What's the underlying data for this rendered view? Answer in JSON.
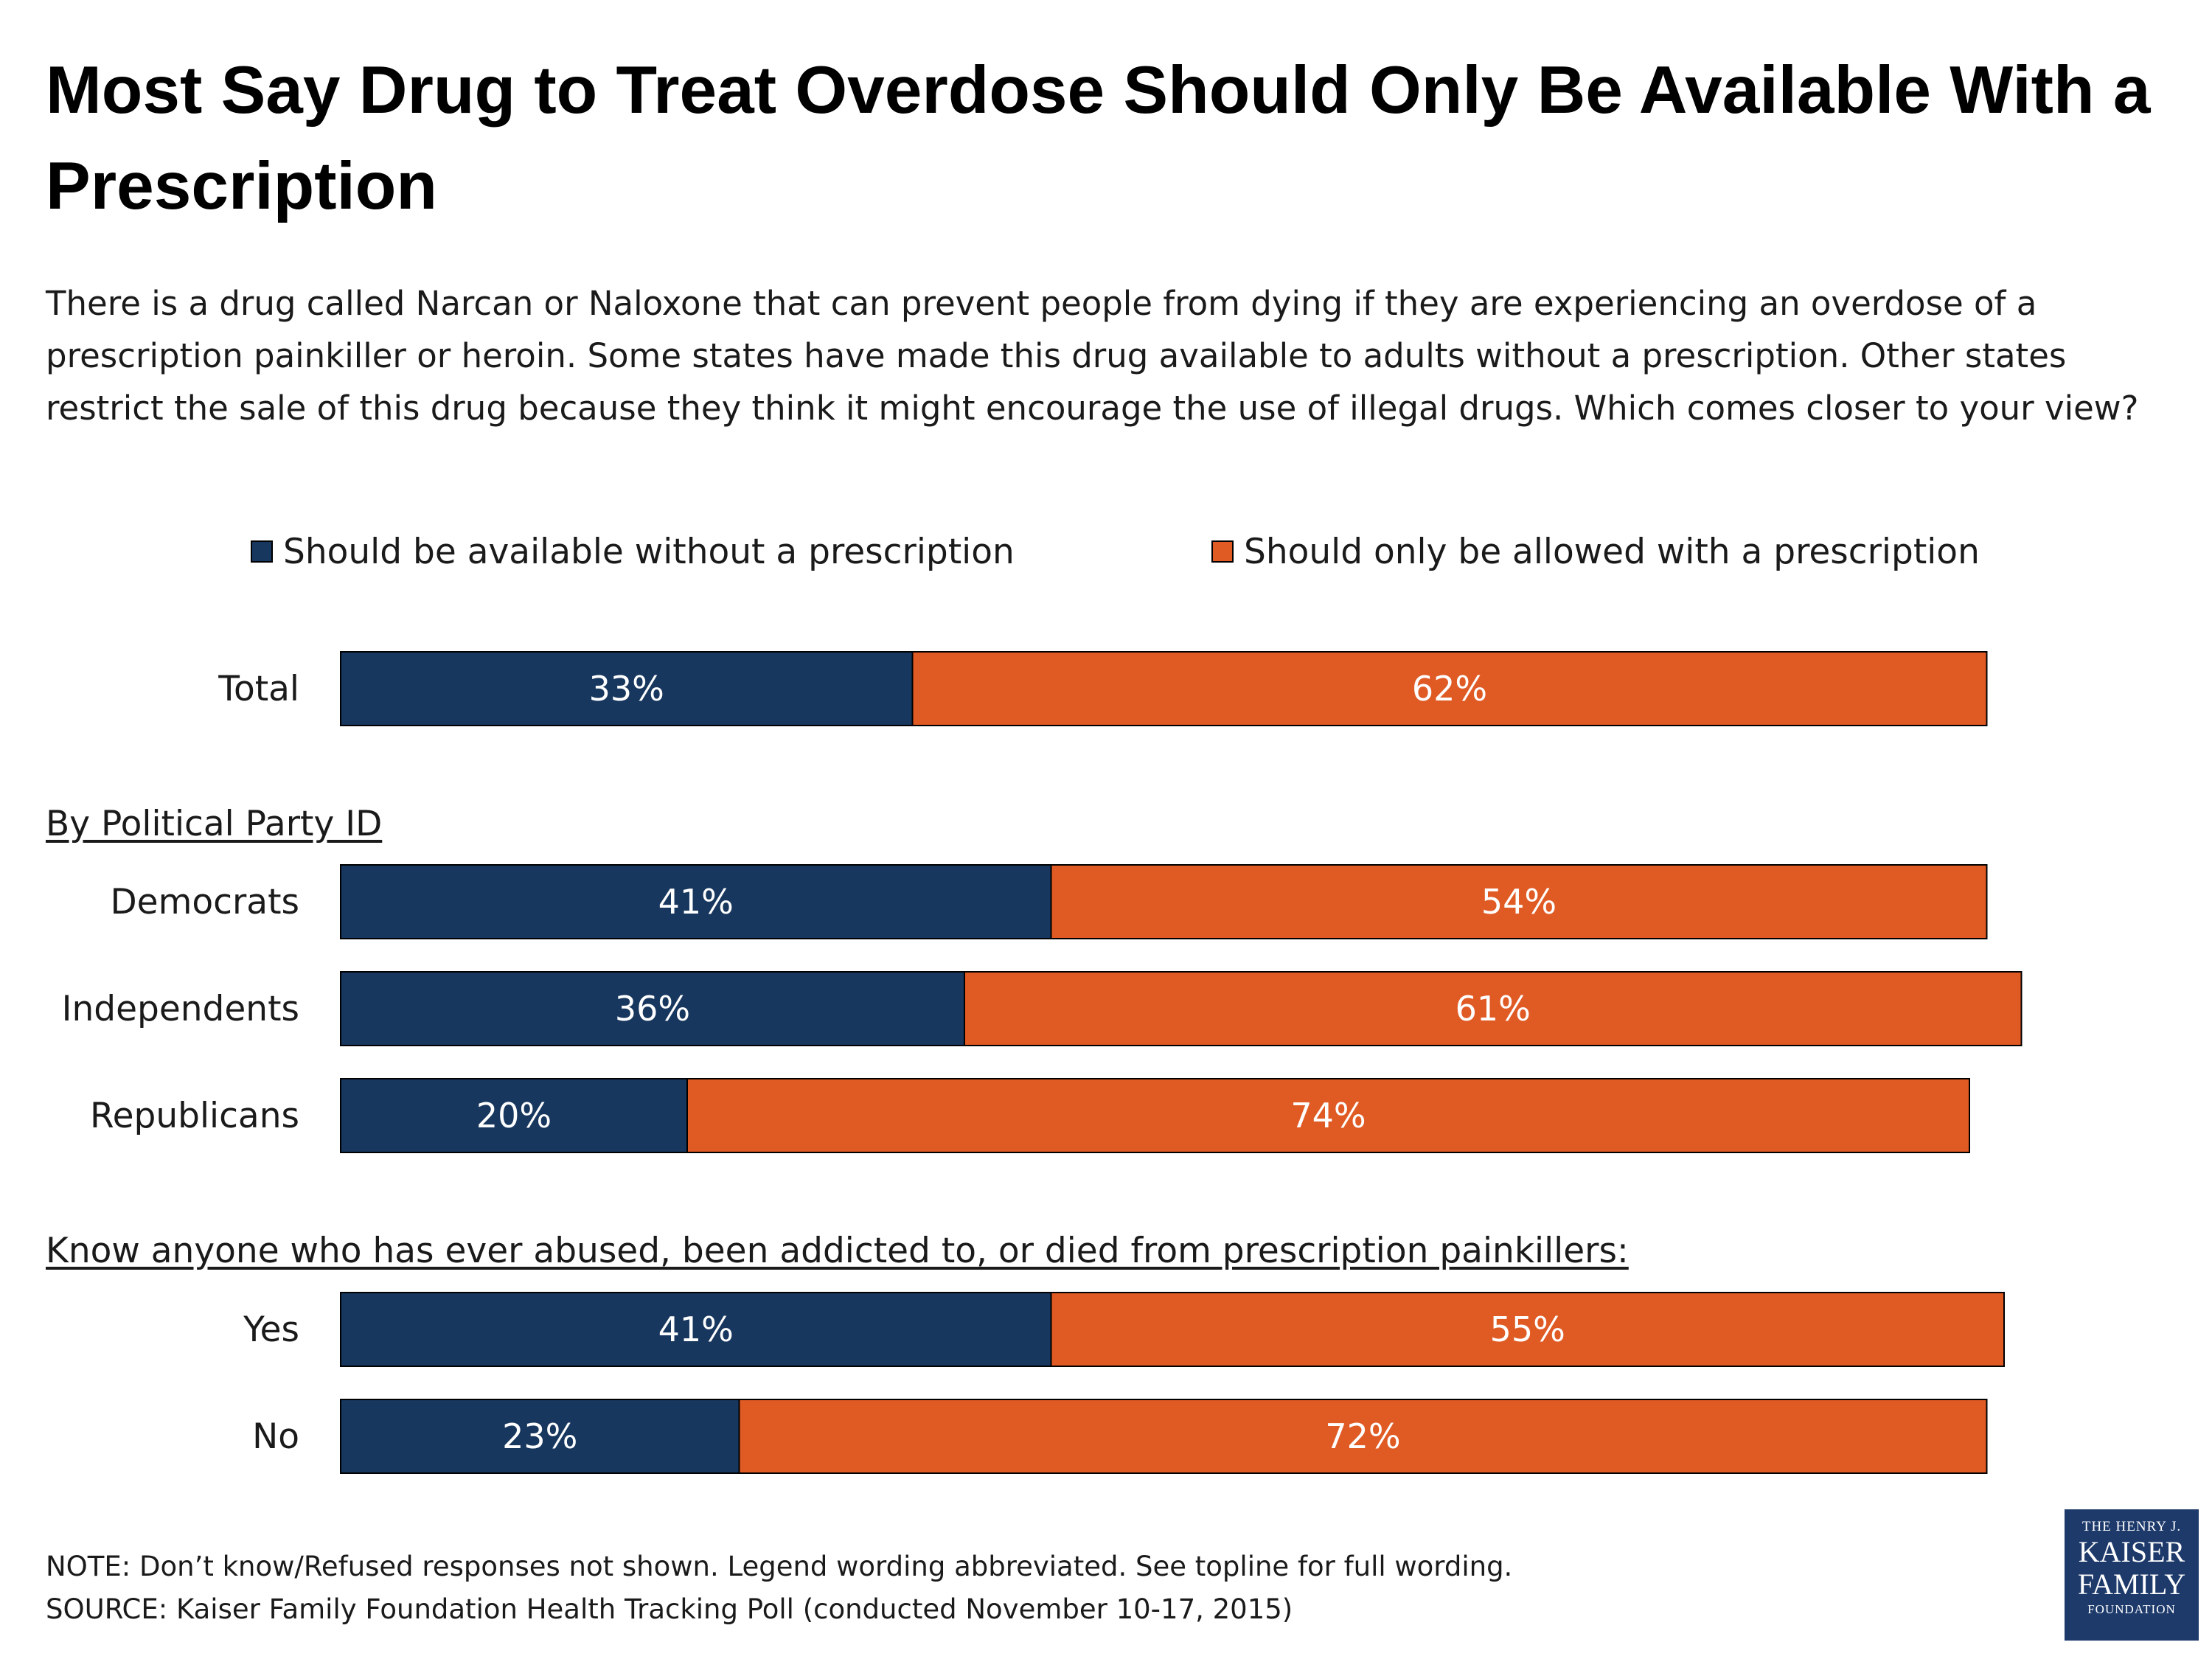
{
  "title": "Most Say Drug to Treat Overdose Should Only Be Available With a Prescription",
  "subtitle": "There is a drug called Narcan or Naloxone that can prevent people from dying if they are experiencing an overdose of a prescription painkiller or heroin. Some states have made this drug available to adults without a prescription. Other states restrict the sale of this drug because they think it might encourage the use of illegal drugs. Which comes closer to your view?",
  "legend": {
    "series1": "Should be available without a prescription",
    "series2": "Should only be allowed with a prescription"
  },
  "sections": {
    "party": "By Political Party ID",
    "know": "Know anyone who has ever abused, been addicted to, or died from prescription painkillers:"
  },
  "colors": {
    "series1": "#17375e",
    "series2": "#e05a24"
  },
  "chart_data": {
    "type": "bar",
    "orientation": "horizontal",
    "stacked": true,
    "categories": [
      "Total",
      "Democrats",
      "Independents",
      "Republicans",
      "Yes",
      "No"
    ],
    "series": [
      {
        "name": "Should be available without a prescription",
        "values": [
          33,
          41,
          36,
          20,
          41,
          23
        ],
        "labels": [
          "33%",
          "41%",
          "36%",
          "20%",
          "41%",
          "23%"
        ]
      },
      {
        "name": "Should only be allowed with a prescription",
        "values": [
          62,
          54,
          61,
          74,
          55,
          72
        ],
        "labels": [
          "62%",
          "54%",
          "61%",
          "74%",
          "55%",
          "72%"
        ]
      }
    ],
    "xlim": [
      0,
      100
    ],
    "grid": false,
    "legend_position": "top"
  },
  "notes": {
    "note": "NOTE: Don’t know/Refused responses not shown. Legend wording abbreviated. See topline for full wording.",
    "source": "SOURCE: Kaiser Family Foundation Health Tracking Poll (conducted November 10-17, 2015)"
  },
  "logo": {
    "line1": "THE HENRY J.",
    "line2": "KAISER",
    "line3": "FAMILY",
    "line4": "FOUNDATION"
  }
}
